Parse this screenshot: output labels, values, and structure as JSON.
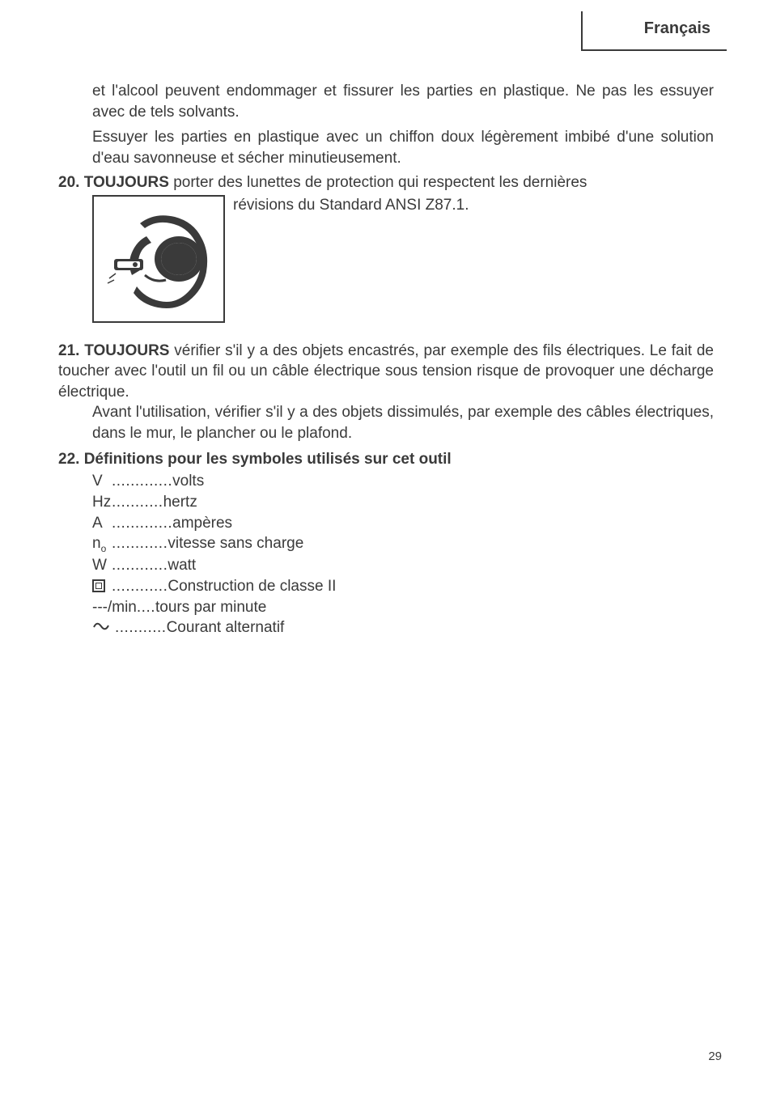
{
  "header": {
    "language": "Français"
  },
  "paragraphs": {
    "intro_p1": "et l'alcool peuvent endommager et fissurer les parties en plastique. Ne pas les essuyer avec de tels solvants.",
    "intro_p2": "Essuyer les parties en plastique avec un chiffon doux légèrement imbibé d'une solution d'eau savonneuse et sécher minutieusement."
  },
  "items": {
    "i20": {
      "num": "20.",
      "lead": "TOUJOURS",
      "text_line1": " porter des lunettes de protection qui respectent les dernières",
      "text_tail": "révisions du Standard ANSI Z87.1."
    },
    "i21": {
      "num": "21.",
      "lead": "TOUJOURS",
      "text": " vérifier s'il y a des objets encastrés, par exemple des fils électriques. Le fait de toucher avec l'outil un fil ou un câble électrique sous tension risque de provoquer une décharge électrique.",
      "text2": "Avant l'utilisation, vérifier s'il y a des objets dissimulés, par exemple des câbles électriques, dans le mur, le plancher ou le plafond."
    },
    "i22": {
      "num": "22.",
      "title": "Définitions pour les symboles utilisés sur cet outil"
    }
  },
  "defs": [
    {
      "sym": "V",
      "dots": " ............. ",
      "label": "volts"
    },
    {
      "sym": "Hz",
      "dots": " ........... ",
      "label": "hertz"
    },
    {
      "sym": "A",
      "dots": " ............. ",
      "label": "ampères"
    },
    {
      "sym": "n",
      "sub": "o",
      "dots": " ............ ",
      "label": "vitesse sans charge"
    },
    {
      "sym": "W",
      "dots": " ............ ",
      "label": "watt"
    },
    {
      "sym_type": "class2",
      "dots": " ............ ",
      "label": "Construction de classe II"
    },
    {
      "sym": "---/min",
      "dots": " .... ",
      "label": "tours par minute"
    },
    {
      "sym_type": "ac",
      "dots": " ........... ",
      "label": "Courant alternatif"
    }
  ],
  "page_number": "29",
  "colors": {
    "text": "#3a3a3a",
    "bg": "#ffffff"
  }
}
